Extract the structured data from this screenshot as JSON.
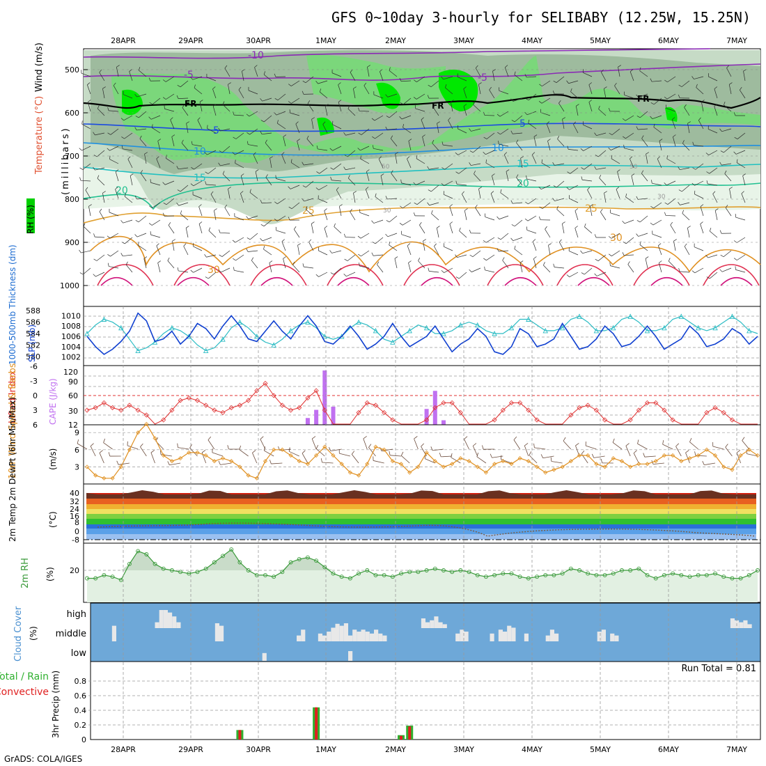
{
  "title": "GFS 0~10day 3-hourly for SELIBABY (12.25W, 15.25N)",
  "credit": "GrADS: COLA/IGES",
  "run_total_label": "Run Total = 0.81",
  "dates": [
    "28APR",
    "29APR",
    "30APR",
    "1MAY",
    "2MAY",
    "3MAY",
    "4MAY",
    "5MAY",
    "6MAY",
    "7MAY"
  ],
  "colors": {
    "rh_light": "#e6f3e6",
    "rh_mid": "#c3d8c3",
    "rh_dark": "#98b598",
    "rh_green": "#7bd87b",
    "rh_bright": "#00e800",
    "slp": "#1040d0",
    "thickness": "#2cbcc4",
    "lifted_index": "#e03030",
    "cape": "#c070f0",
    "wind_speed": "#e09020",
    "barbs": "#6a4a3a",
    "rh2m": "#3a9a3a",
    "cloud_bg": "#6ea8d8",
    "cloud_bar": "#e8e8e8",
    "precip_total": "#2fb02f",
    "precip_conv": "#e02020"
  },
  "panels": {
    "upper": {
      "ylabel_rh": "RH (%)",
      "ylabel_temp": "Temperature (°C)",
      "ylabel_wind": "Wind (m/s)",
      "ylabel_units": "(millibars)",
      "yticks": [
        "500",
        "600",
        "700",
        "800",
        "900",
        "1000"
      ],
      "fr_label": "FR"
    },
    "slp_thick": {
      "ylabel_left": "1000-500mb Thickness (dm)",
      "ylabel_right": "SLP (mb)",
      "thick_ticks": [
        "580",
        "582",
        "584",
        "586",
        "588"
      ],
      "slp_ticks": [
        "1002",
        "1004",
        "1006",
        "1008",
        "1010"
      ]
    },
    "cape_li": {
      "ylabel_left": "Lifted Index",
      "ylabel_right": "CAPE (J/kg)",
      "li_ticks": [
        "-6",
        "-3",
        "0",
        "3",
        "6"
      ],
      "cape_ticks": [
        "120",
        "90",
        "60",
        "30",
        "12"
      ]
    },
    "wind10": {
      "ylabel": "10m Wind Speed & Barbs",
      "units": "(m/s)",
      "yticks": [
        "9",
        "6",
        "3"
      ]
    },
    "temp2m": {
      "ylabel": "2m Temp 2m DewPt (6hr Min/Max)",
      "units": "(°C)",
      "yticks": [
        "40",
        "32",
        "24",
        "16",
        "8",
        "0",
        "-8"
      ]
    },
    "rh2m": {
      "ylabel": "2m RH",
      "units": "(%)",
      "yticks": [
        "20"
      ]
    },
    "cloud": {
      "ylabel": "Cloud Cover",
      "units": "(%)",
      "levels": [
        "high",
        "middle",
        "low"
      ]
    },
    "precip": {
      "ylabel_left": "Total / Rain",
      "ylabel_conv": "Convective",
      "ylabel": "3hr Precip (mm)",
      "yticks": [
        "0",
        "0.2",
        "0.4",
        "0.6",
        "0.8"
      ]
    }
  },
  "chart_data": [
    {
      "type": "line",
      "name": "slp_thickness",
      "series": [
        {
          "name": "SLP (mb)",
          "values": [
            1006,
            1004,
            1002.5,
            1003.5,
            1005,
            1007,
            1010.5,
            1009,
            1005,
            1005.5,
            1007,
            1004.5,
            1006,
            1008.5,
            1007.5,
            1005.5,
            1008,
            1010,
            1008,
            1005.5,
            1005,
            1007,
            1009,
            1007,
            1005.5,
            1008,
            1010,
            1008,
            1005,
            1004.5,
            1006,
            1008,
            1006,
            1003.5,
            1004.5,
            1006,
            1008.5,
            1006,
            1004,
            1005,
            1006,
            1008,
            1005.5,
            1003,
            1004.5,
            1005.5,
            1007.5,
            1006,
            1003,
            1002.5,
            1004,
            1007.5,
            1006.5,
            1004,
            1004.5,
            1005.5,
            1008.5,
            1006,
            1003.5,
            1004,
            1005.5,
            1008,
            1006.5,
            1004,
            1004.5,
            1006,
            1008,
            1006,
            1003.5,
            1004.5,
            1005.5,
            1008,
            1006.5,
            1004,
            1004.5,
            1005.5,
            1007.5,
            1006.5,
            1004.5,
            1006
          ]
        },
        {
          "name": "1000-500mb Thickness (dm)",
          "values": [
            584,
            585.5,
            586.5,
            586,
            585,
            583,
            581,
            581.5,
            582.5,
            584,
            585,
            584.5,
            583.5,
            582,
            581,
            581.5,
            583,
            585,
            586,
            585,
            583.5,
            582.5,
            582,
            583,
            584.5,
            585.5,
            586,
            585,
            583.5,
            583,
            583.5,
            585,
            586,
            585.5,
            584.5,
            583,
            582.5,
            583.5,
            584.5,
            585.5,
            585,
            584,
            584,
            584.5,
            585.5,
            586,
            585.5,
            584.5,
            584,
            584,
            585,
            586.5,
            586.5,
            585.5,
            584.5,
            584.5,
            585,
            586.5,
            587,
            586,
            584.5,
            584.5,
            585,
            586.5,
            587,
            586,
            584.5,
            584.5,
            585,
            586.5,
            587,
            586,
            585,
            584.5,
            585,
            586,
            587,
            586,
            584.5,
            584
          ]
        }
      ]
    },
    {
      "type": "bar",
      "name": "cape",
      "x_index": [
        26,
        27,
        28,
        29,
        40,
        41,
        42
      ],
      "values": [
        15,
        33,
        120,
        40,
        35,
        75,
        10
      ]
    },
    {
      "type": "line",
      "name": "lifted_index",
      "values": [
        3,
        2.5,
        1.5,
        2.5,
        3,
        2,
        3,
        4,
        6,
        5,
        3,
        1,
        0.5,
        1,
        2,
        3,
        3.5,
        2.5,
        2,
        1,
        -1,
        -2.5,
        0,
        2,
        3,
        2.5,
        0.5,
        -1,
        3,
        6,
        7,
        6,
        3.5,
        1.5,
        2,
        3.5,
        5,
        6.5,
        8,
        7,
        5,
        2.5,
        1.5,
        1.5,
        3.5,
        6,
        8,
        7,
        5,
        3,
        1.5,
        1.5,
        3,
        5,
        6.5,
        7.5,
        6,
        4,
        2.5,
        2,
        3,
        5,
        7,
        7,
        5,
        3,
        1.5,
        1.5,
        3,
        5,
        7,
        8,
        6,
        3.5,
        2.5,
        3.5,
        5,
        7.5,
        8,
        7
      ]
    },
    {
      "type": "line",
      "name": "wind10_speed",
      "values": [
        3,
        1.5,
        1,
        1,
        3,
        6,
        9,
        10.5,
        8,
        5,
        4,
        4.5,
        5.5,
        5.5,
        5,
        4,
        4.5,
        4,
        3,
        1.5,
        1,
        4,
        6,
        6,
        5,
        4,
        3.5,
        5,
        6.5,
        5,
        3.5,
        2,
        1.5,
        3.5,
        6.5,
        6,
        4,
        3.5,
        2,
        3,
        5.5,
        4,
        3,
        3.5,
        4.5,
        4,
        3,
        2,
        3.5,
        4,
        3.5,
        4.5,
        4,
        3,
        2,
        2.5,
        3,
        4,
        5,
        5,
        3.5,
        3,
        4.5,
        4,
        3,
        3.5,
        3.5,
        4,
        5,
        5,
        4,
        4.5,
        5,
        6,
        5,
        3,
        2.5,
        5,
        6,
        5
      ]
    },
    {
      "type": "line",
      "name": "rh2m",
      "values": [
        15,
        15,
        17,
        16,
        14,
        24,
        32,
        30,
        24,
        21,
        20,
        19,
        18,
        19,
        21,
        25,
        29,
        33,
        25,
        20,
        17,
        17,
        16,
        19,
        25,
        27,
        28,
        26,
        22,
        18,
        16,
        15,
        18,
        20,
        17,
        17,
        16,
        18,
        19,
        19,
        20,
        21,
        20,
        19,
        20,
        19,
        17,
        16,
        17,
        18,
        18,
        16,
        15,
        16,
        17,
        17,
        18,
        21,
        20,
        18,
        17,
        17,
        18,
        20,
        20,
        21,
        17,
        15,
        17,
        18,
        17,
        16,
        17,
        17,
        18,
        16,
        15,
        15,
        17,
        20
      ]
    },
    {
      "type": "bar",
      "name": "precip_3hr",
      "series": [
        {
          "name": "Total / Rain",
          "x_index": [
            18,
            27,
            37,
            38
          ],
          "values": [
            0.13,
            0.44,
            0.06,
            0.19
          ]
        },
        {
          "name": "Convective",
          "x_index": [
            18,
            27,
            37,
            38
          ],
          "values": [
            0.13,
            0.44,
            0.05,
            0.18
          ]
        }
      ],
      "ylim": [
        0,
        1
      ]
    }
  ]
}
